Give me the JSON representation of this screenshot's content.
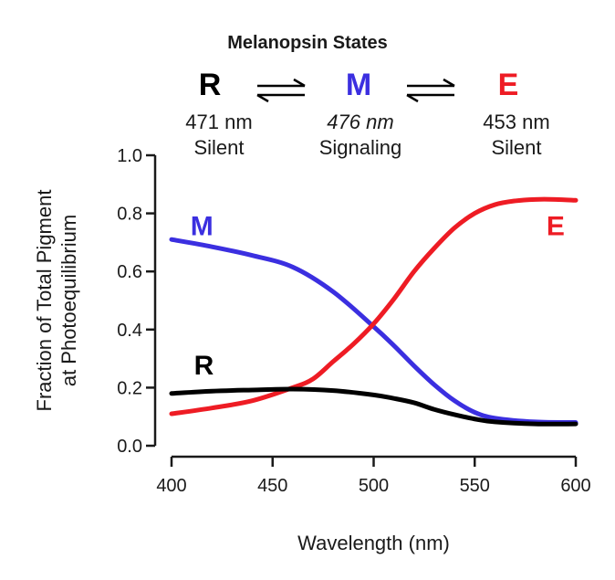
{
  "header": {
    "title": "Melanopsin States",
    "states": [
      {
        "letter": "R",
        "wavelength": "471 nm",
        "status": "Silent",
        "color": "#000000",
        "italic": false
      },
      {
        "letter": "M",
        "wavelength": "476 nm",
        "status": "Signaling",
        "color": "#3b2fe0",
        "italic": true
      },
      {
        "letter": "E",
        "wavelength": "453 nm",
        "status": "Silent",
        "color": "#ee1c24",
        "italic": false
      }
    ]
  },
  "chart_data": {
    "type": "line",
    "xlabel": "Wavelength (nm)",
    "ylabel": "Fraction of Total Pigment",
    "ylabel2": "at Photoequilibrium",
    "xlim": [
      400,
      600
    ],
    "ylim": [
      0.0,
      1.0
    ],
    "xticks": [
      400,
      450,
      500,
      550,
      600
    ],
    "yticks": [
      0.0,
      0.2,
      0.4,
      0.6,
      0.8,
      1.0
    ],
    "grid": false,
    "series": [
      {
        "name": "M",
        "color": "#3b2fe0",
        "x": [
          400,
          420,
          440,
          460,
          480,
          500,
          510,
          520,
          530,
          540,
          550,
          560,
          580,
          600
        ],
        "y": [
          0.71,
          0.685,
          0.655,
          0.615,
          0.53,
          0.41,
          0.345,
          0.275,
          0.21,
          0.155,
          0.115,
          0.095,
          0.082,
          0.08
        ]
      },
      {
        "name": "E",
        "color": "#ee1c24",
        "x": [
          400,
          420,
          440,
          460,
          470,
          480,
          490,
          500,
          510,
          520,
          530,
          540,
          550,
          560,
          570,
          580,
          590,
          600
        ],
        "y": [
          0.11,
          0.13,
          0.155,
          0.2,
          0.23,
          0.29,
          0.35,
          0.42,
          0.505,
          0.6,
          0.68,
          0.75,
          0.8,
          0.83,
          0.843,
          0.848,
          0.848,
          0.845
        ]
      },
      {
        "name": "R",
        "color": "#000000",
        "x": [
          400,
          420,
          440,
          460,
          480,
          500,
          510,
          520,
          530,
          540,
          550,
          560,
          580,
          600
        ],
        "y": [
          0.18,
          0.188,
          0.192,
          0.195,
          0.19,
          0.175,
          0.163,
          0.148,
          0.125,
          0.107,
          0.092,
          0.082,
          0.075,
          0.075
        ]
      }
    ],
    "series_labels": [
      {
        "text": "M",
        "color": "#3b2fe0",
        "x": 415,
        "y": 0.76
      },
      {
        "text": "E",
        "color": "#ee1c24",
        "x": 590,
        "y": 0.76
      },
      {
        "text": "R",
        "color": "#000000",
        "x": 416,
        "y": 0.28
      }
    ]
  }
}
